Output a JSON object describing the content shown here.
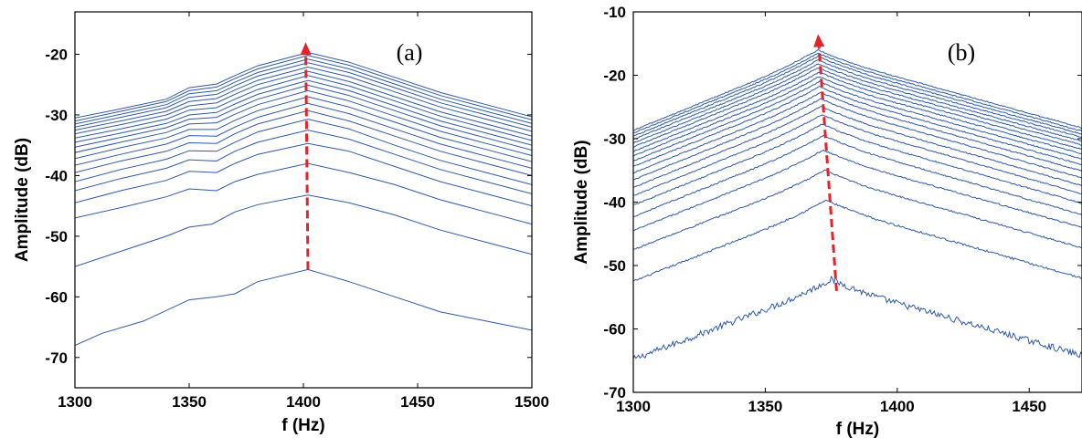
{
  "chart_data": [
    {
      "type": "line",
      "panel_label": "(a)",
      "xlabel": "f (Hz)",
      "ylabel": "Amplitude (dB)",
      "xlim": [
        1300,
        1500
      ],
      "ylim": [
        -75,
        -13
      ],
      "xticks": [
        1300,
        1350,
        1400,
        1450,
        1500
      ],
      "yticks": [
        -70,
        -60,
        -50,
        -40,
        -30,
        -20
      ],
      "grid": false,
      "annotation": {
        "type": "dashed-arrow",
        "color": "#e0242a",
        "from": [
          1402,
          -55.5
        ],
        "to": [
          1401,
          -18
        ]
      },
      "series": [
        {
          "peak_x": 1402,
          "values_x": [
            1300,
            1312,
            1330,
            1350,
            1362,
            1370,
            1380,
            1402,
            1420,
            1440,
            1460,
            1480,
            1500
          ],
          "values_y": [
            -68,
            -66,
            -64,
            -60.5,
            -60,
            -59.5,
            -57.5,
            -55.5,
            -57.5,
            -60,
            -62.5,
            -64,
            -65.5
          ]
        },
        {
          "peak_x": 1402,
          "values_x": [
            1300,
            1320,
            1340,
            1350,
            1360,
            1370,
            1380,
            1402,
            1420,
            1440,
            1460,
            1480,
            1500
          ],
          "values_y": [
            -55,
            -52.5,
            -50,
            -48.5,
            -48,
            -46,
            -44.8,
            -43.2,
            -44.5,
            -46.5,
            -49,
            -51,
            -53
          ]
        },
        {
          "peak_x": 1402,
          "values_x": [
            1300,
            1320,
            1340,
            1350,
            1362,
            1370,
            1380,
            1402,
            1420,
            1440,
            1460,
            1480,
            1500
          ],
          "values_y": [
            -47,
            -45.3,
            -43.5,
            -42.2,
            -42.5,
            -41,
            -39.8,
            -38,
            -39.5,
            -41.5,
            -44,
            -46,
            -48
          ]
        },
        {
          "peak_x": 1402,
          "values_x": [
            1300,
            1320,
            1340,
            1350,
            1362,
            1370,
            1380,
            1402,
            1420,
            1440,
            1460,
            1480,
            1500
          ],
          "values_y": [
            -44.5,
            -42.5,
            -40.8,
            -39.3,
            -39.5,
            -38,
            -36.5,
            -34.7,
            -36,
            -38.5,
            -41,
            -43,
            -45
          ]
        },
        {
          "peak_x": 1402,
          "values_x": [
            1300,
            1320,
            1340,
            1350,
            1362,
            1370,
            1380,
            1402,
            1420,
            1440,
            1460,
            1480,
            1500
          ],
          "values_y": [
            -42.5,
            -40.5,
            -38.8,
            -37.4,
            -37.6,
            -36,
            -34.5,
            -32.5,
            -34,
            -36.5,
            -39,
            -41,
            -43
          ]
        },
        {
          "peak_x": 1402,
          "values_x": [
            1300,
            1320,
            1340,
            1350,
            1362,
            1370,
            1380,
            1402,
            1420,
            1440,
            1460,
            1480,
            1500
          ],
          "values_y": [
            -41,
            -39,
            -37.3,
            -35.9,
            -36,
            -34.5,
            -32.8,
            -30.7,
            -32.3,
            -35,
            -37.5,
            -39.5,
            -41.5
          ]
        },
        {
          "peak_x": 1402,
          "values_x": [
            1300,
            1320,
            1340,
            1350,
            1362,
            1370,
            1380,
            1402,
            1420,
            1440,
            1460,
            1480,
            1500
          ],
          "values_y": [
            -39.5,
            -37.6,
            -36,
            -34.6,
            -34.7,
            -33.1,
            -31.5,
            -29.3,
            -31,
            -33.5,
            -36,
            -38,
            -40
          ]
        },
        {
          "peak_x": 1402,
          "values_x": [
            1300,
            1320,
            1340,
            1350,
            1362,
            1370,
            1380,
            1402,
            1420,
            1440,
            1460,
            1480,
            1500
          ],
          "values_y": [
            -38.3,
            -36.5,
            -34.8,
            -33.4,
            -33.5,
            -32,
            -30.4,
            -28.1,
            -29.8,
            -32.3,
            -34.8,
            -36.8,
            -38.8
          ]
        },
        {
          "peak_x": 1402,
          "values_x": [
            1300,
            1320,
            1340,
            1350,
            1362,
            1370,
            1380,
            1402,
            1420,
            1440,
            1460,
            1480,
            1500
          ],
          "values_y": [
            -37.2,
            -35.4,
            -33.8,
            -32.4,
            -32.4,
            -30.9,
            -29.3,
            -27,
            -28.7,
            -31.2,
            -33.7,
            -35.7,
            -37.7
          ]
        },
        {
          "peak_x": 1402,
          "values_x": [
            1300,
            1320,
            1340,
            1350,
            1362,
            1370,
            1380,
            1402,
            1420,
            1440,
            1460,
            1480,
            1500
          ],
          "values_y": [
            -36.2,
            -34.5,
            -32.9,
            -31.5,
            -31.3,
            -29.9,
            -28.3,
            -26,
            -27.7,
            -30.2,
            -32.7,
            -34.7,
            -36.7
          ]
        },
        {
          "peak_x": 1402,
          "values_x": [
            1300,
            1320,
            1340,
            1350,
            1362,
            1370,
            1380,
            1402,
            1420,
            1440,
            1460,
            1480,
            1500
          ],
          "values_y": [
            -35.3,
            -33.7,
            -32.1,
            -30.7,
            -30.4,
            -29,
            -27.4,
            -25.1,
            -26.8,
            -29.3,
            -31.8,
            -33.8,
            -35.8
          ]
        },
        {
          "peak_x": 1402,
          "values_x": [
            1300,
            1320,
            1340,
            1350,
            1362,
            1370,
            1380,
            1402,
            1420,
            1440,
            1460,
            1480,
            1500
          ],
          "values_y": [
            -34.5,
            -33,
            -31.4,
            -30,
            -29.6,
            -28.2,
            -26.6,
            -24.3,
            -26,
            -28.5,
            -31,
            -33,
            -35
          ]
        },
        {
          "peak_x": 1402,
          "values_x": [
            1300,
            1320,
            1340,
            1350,
            1362,
            1370,
            1380,
            1402,
            1420,
            1440,
            1460,
            1480,
            1500
          ],
          "values_y": [
            -33.8,
            -32.3,
            -30.7,
            -29.2,
            -28.8,
            -27.4,
            -25.8,
            -23.5,
            -25.2,
            -27.7,
            -30.2,
            -32.2,
            -34.2
          ]
        },
        {
          "peak_x": 1402,
          "values_x": [
            1300,
            1320,
            1340,
            1350,
            1362,
            1370,
            1380,
            1402,
            1420,
            1440,
            1460,
            1480,
            1500
          ],
          "values_y": [
            -33.1,
            -31.6,
            -30,
            -28.5,
            -28,
            -26.6,
            -25,
            -22.8,
            -24.5,
            -27,
            -29.5,
            -31.5,
            -33.5
          ]
        },
        {
          "peak_x": 1402,
          "values_x": [
            1300,
            1320,
            1340,
            1350,
            1362,
            1370,
            1380,
            1402,
            1420,
            1440,
            1460,
            1480,
            1500
          ],
          "values_y": [
            -32.5,
            -31,
            -29.4,
            -27.8,
            -27.3,
            -25.9,
            -24.3,
            -22.1,
            -23.7,
            -26.2,
            -28.7,
            -30.7,
            -32.7
          ]
        },
        {
          "peak_x": 1402,
          "values_x": [
            1300,
            1320,
            1340,
            1350,
            1362,
            1370,
            1380,
            1402,
            1420,
            1440,
            1460,
            1480,
            1500
          ],
          "values_y": [
            -32,
            -30.4,
            -28.8,
            -27.1,
            -26.6,
            -25.2,
            -23.6,
            -21.4,
            -23,
            -25.5,
            -28,
            -30,
            -32
          ]
        },
        {
          "peak_x": 1402,
          "values_x": [
            1300,
            1320,
            1340,
            1350,
            1362,
            1370,
            1380,
            1402,
            1420,
            1440,
            1460,
            1480,
            1500
          ],
          "values_y": [
            -31.5,
            -29.9,
            -28.3,
            -26.5,
            -26,
            -24.6,
            -23,
            -20.8,
            -22.4,
            -24.9,
            -27.4,
            -29.4,
            -31.4
          ]
        },
        {
          "peak_x": 1402,
          "values_x": [
            1300,
            1320,
            1340,
            1350,
            1362,
            1370,
            1380,
            1402,
            1420,
            1440,
            1460,
            1480,
            1500
          ],
          "values_y": [
            -31,
            -29.4,
            -27.8,
            -26,
            -25.4,
            -24,
            -22.4,
            -20.2,
            -21.8,
            -24.3,
            -26.8,
            -28.8,
            -30.8
          ]
        },
        {
          "peak_x": 1402,
          "values_x": [
            1300,
            1320,
            1340,
            1350,
            1362,
            1370,
            1380,
            1402,
            1420,
            1440,
            1460,
            1480,
            1500
          ],
          "values_y": [
            -30.5,
            -29,
            -27.4,
            -25.5,
            -24.9,
            -23.5,
            -21.9,
            -19.7,
            -21.3,
            -23.8,
            -26.3,
            -28.3,
            -30.3
          ]
        }
      ]
    },
    {
      "type": "line",
      "panel_label": "(b)",
      "xlabel": "f (Hz)",
      "ylabel": "Amplitude (dB)",
      "xlim": [
        1300,
        1470
      ],
      "ylim": [
        -70,
        -10
      ],
      "xticks": [
        1300,
        1350,
        1400,
        1450
      ],
      "yticks": [
        -70,
        -60,
        -50,
        -40,
        -30,
        -20,
        -10
      ],
      "grid": false,
      "annotation": {
        "type": "dashed-arrow",
        "color": "#e0242a",
        "from": [
          1377,
          -54
        ],
        "to": [
          1370,
          -13.5
        ]
      },
      "series": [
        {
          "peak": [
            1375,
            -53
          ],
          "start": -64.8,
          "end": -64.2,
          "noise": 0.5
        },
        {
          "peak": [
            1373,
            -40.5
          ],
          "start": -52.5,
          "end": -52,
          "noise": 0.15
        },
        {
          "peak": [
            1372.5,
            -35.8
          ],
          "start": -47.5,
          "end": -47.2,
          "noise": 0.12
        },
        {
          "peak": [
            1372,
            -32.6
          ],
          "start": -44.5,
          "end": -44,
          "noise": 0.1
        },
        {
          "peak": [
            1372,
            -30.3
          ],
          "start": -42.3,
          "end": -42,
          "noise": 0.1
        },
        {
          "peak": [
            1371.5,
            -28.5
          ],
          "start": -40.5,
          "end": -40.2,
          "noise": 0.1
        },
        {
          "peak": [
            1371.5,
            -27
          ],
          "start": -39,
          "end": -38.7,
          "noise": 0.08
        },
        {
          "peak": [
            1371,
            -25.7
          ],
          "start": -37.7,
          "end": -37.4,
          "noise": 0.08
        },
        {
          "peak": [
            1371,
            -24.5
          ],
          "start": -36.5,
          "end": -36.2,
          "noise": 0.08
        },
        {
          "peak": [
            1371,
            -23.5
          ],
          "start": -35.4,
          "end": -35.1,
          "noise": 0.08
        },
        {
          "peak": [
            1370.5,
            -22.6
          ],
          "start": -34.4,
          "end": -34.1,
          "noise": 0.08
        },
        {
          "peak": [
            1370.5,
            -21.8
          ],
          "start": -33.5,
          "end": -33.2,
          "noise": 0.08
        },
        {
          "peak": [
            1370.5,
            -21
          ],
          "start": -32.7,
          "end": -32.4,
          "noise": 0.08
        },
        {
          "peak": [
            1370.5,
            -20.3
          ],
          "start": -32,
          "end": -31.7,
          "noise": 0.08
        },
        {
          "peak": [
            1370,
            -19.6
          ],
          "start": -31.3,
          "end": -31,
          "noise": 0.08
        },
        {
          "peak": [
            1370,
            -19
          ],
          "start": -30.7,
          "end": -30.4,
          "noise": 0.08
        },
        {
          "peak": [
            1370,
            -18.4
          ],
          "start": -30.1,
          "end": -29.8,
          "noise": 0.08
        },
        {
          "peak": [
            1370,
            -17.8
          ],
          "start": -29.6,
          "end": -29.3,
          "noise": 0.08
        },
        {
          "peak": [
            1370,
            -17.3
          ],
          "start": -29.1,
          "end": -28.8,
          "noise": 0.08
        },
        {
          "peak": [
            1370,
            -16.8
          ],
          "start": -28.7,
          "end": -28.3,
          "noise": 0.08
        }
      ]
    }
  ]
}
